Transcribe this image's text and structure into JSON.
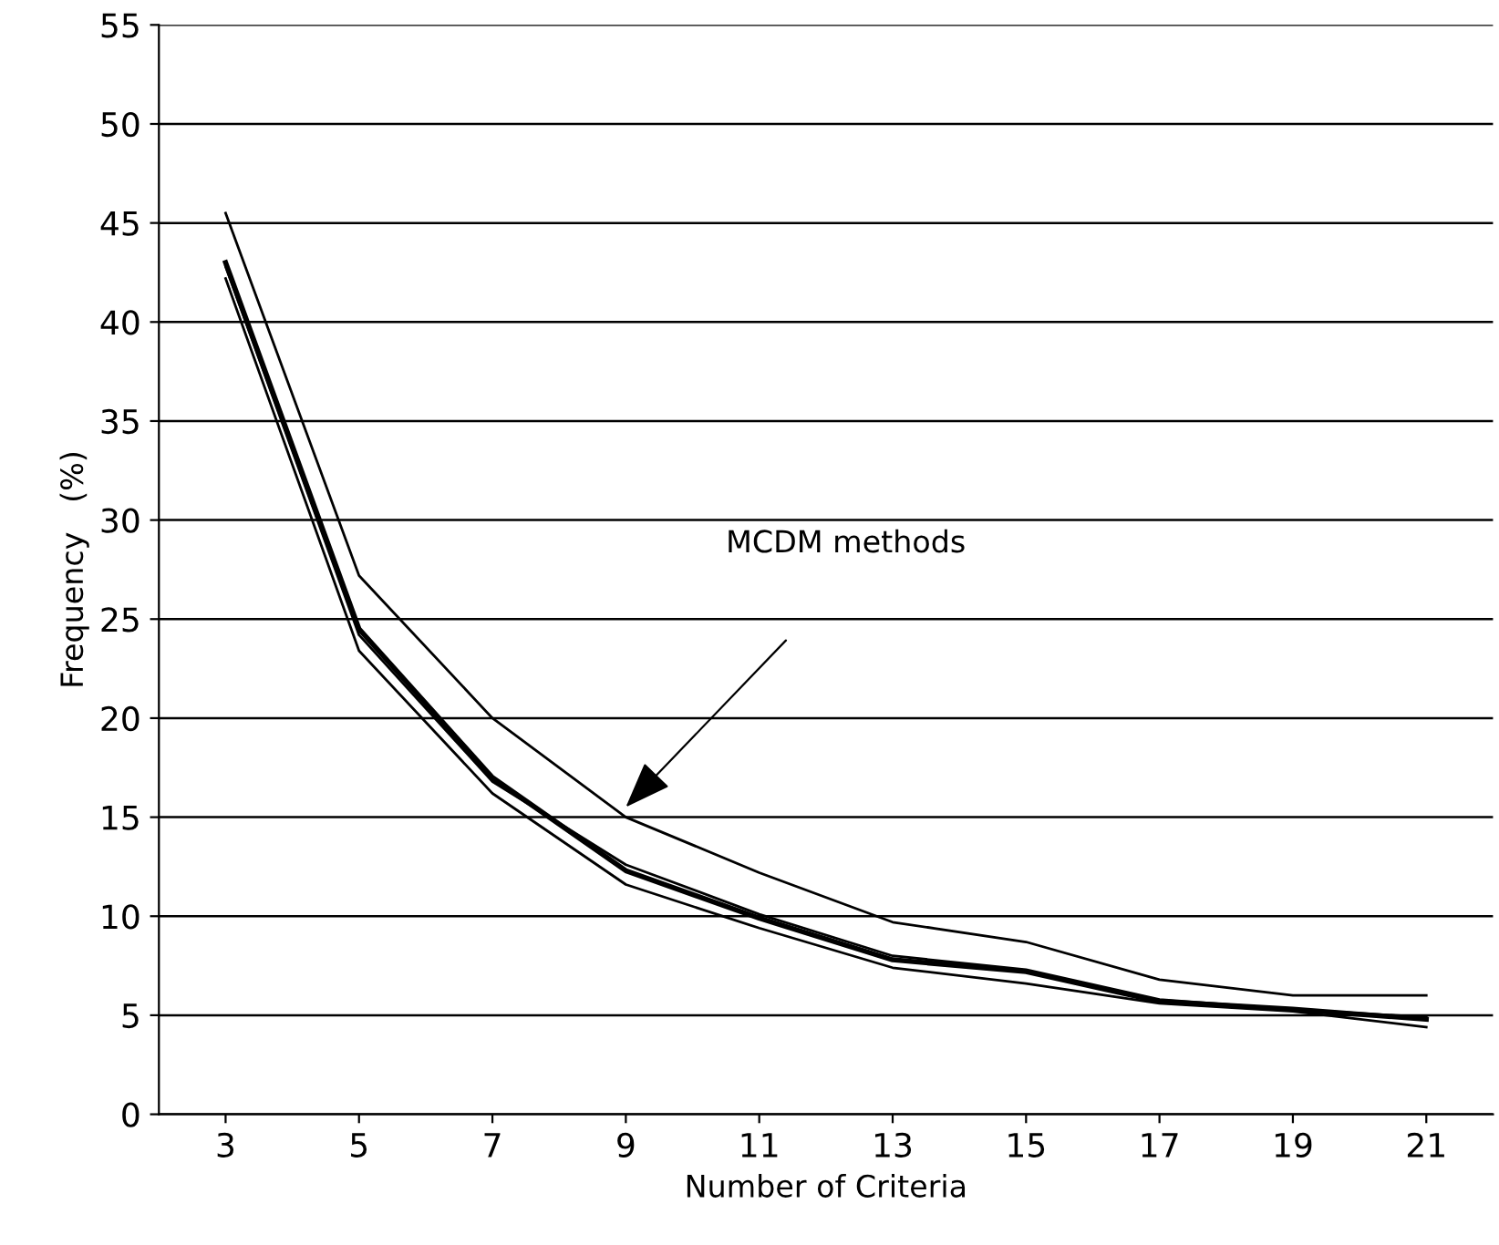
{
  "chart_data": {
    "type": "line",
    "xlabel": "Number of Criteria",
    "ylabel": "Frequency   (%)",
    "x": [
      3,
      5,
      7,
      9,
      11,
      13,
      15,
      17,
      19,
      21
    ],
    "series": [
      {
        "color": "#000000",
        "values": [
          45.5,
          27.2,
          20,
          15,
          12.2,
          9.7,
          8.7,
          6.8,
          6.0,
          6.0
        ]
      },
      {
        "color": "#000000",
        "values": [
          43,
          24.5,
          17,
          12.3,
          9.9,
          7.8,
          7.2,
          5.7,
          5.3,
          4.8
        ]
      },
      {
        "color": "#000000",
        "values": [
          42.8,
          24.2,
          16.8,
          12.6,
          10.1,
          8.0,
          7.3,
          5.8,
          5.3,
          4.9
        ]
      },
      {
        "color": "#000000",
        "values": [
          42.2,
          23.4,
          16.2,
          11.6,
          9.4,
          7.4,
          6.6,
          5.6,
          5.2,
          4.4
        ]
      }
    ],
    "annotations": [
      "MCDM methods"
    ],
    "xlim": [
      2,
      22
    ],
    "xticks": [
      3,
      5,
      7,
      9,
      11,
      13,
      15,
      17,
      19,
      21
    ],
    "ylim": [
      0,
      55
    ],
    "yticks": [
      0,
      5,
      10,
      15,
      20,
      25,
      30,
      35,
      40,
      45,
      50,
      55
    ],
    "grid": "y",
    "legend": false,
    "marker": "none",
    "line_style": "solid"
  }
}
